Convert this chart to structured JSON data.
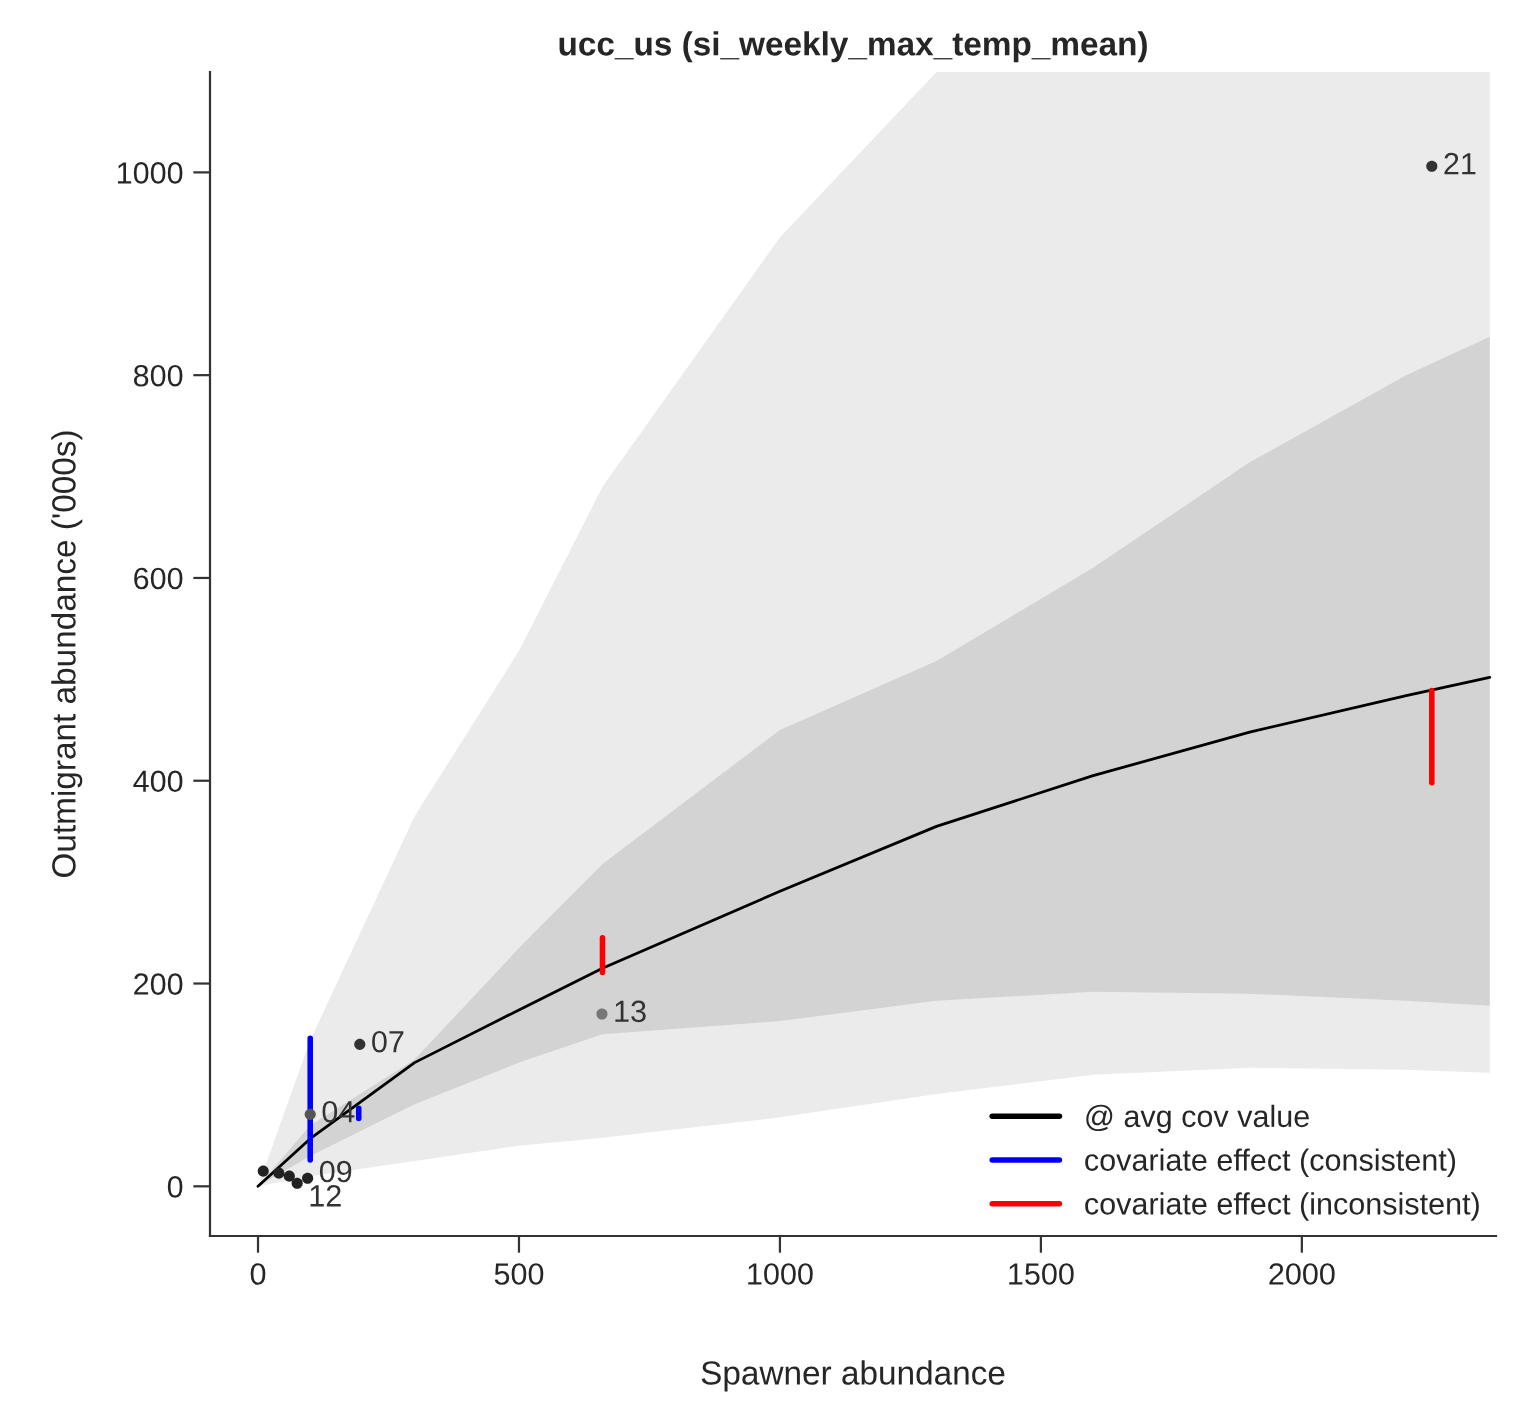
{
  "chart_data": {
    "type": "line",
    "title": "ucc_us (si_weekly_max_temp_mean)",
    "xlabel": "Spawner abundance",
    "ylabel": "Outmigrant abundance ('000s)",
    "xlim": [
      -92,
      2372
    ],
    "ylim": [
      -49,
      1099
    ],
    "xticks": [
      0,
      500,
      1000,
      1500,
      2000
    ],
    "yticks": [
      0,
      200,
      400,
      600,
      800,
      1000
    ],
    "grid": false,
    "legend": "bottom right",
    "series": [
      {
        "type": "area",
        "color": "#ebebeb",
        "x": [
          0,
          100,
          300,
          500,
          660,
          1000,
          1300,
          1600,
          1900,
          2200,
          2360
        ],
        "values": [
          null,
          null,
          null,
          null,
          null,
          null,
          null,
          null,
          null,
          null,
          null
        ],
        "lower": [
          0,
          10,
          25,
          40,
          48,
          68,
          91,
          110,
          117,
          115,
          112
        ],
        "upper": [
          0,
          144,
          365,
          528,
          690,
          936,
          1099,
          1099,
          1099,
          1099,
          1099
        ]
      },
      {
        "name": "@ avg cov value",
        "color": "#000000",
        "x": [
          0,
          100,
          300,
          500,
          660,
          1000,
          1300,
          1600,
          1900,
          2200,
          2360
        ],
        "values": [
          0,
          47,
          122,
          174,
          215,
          291,
          355,
          405,
          448,
          484,
          502
        ],
        "lower": [
          0,
          30,
          81,
          122,
          150,
          163,
          183,
          192,
          190,
          183,
          178
        ],
        "upper": [
          0,
          60,
          125,
          235,
          318,
          450,
          518,
          610,
          714,
          800,
          838
        ]
      },
      {
        "type": "line",
        "name": "covariate effect (consistent)",
        "color": "#0000ff",
        "x": [
          100,
          100,
          146,
          193,
          193
        ],
        "values": [
          26,
          146,
          null,
          67,
          77
        ]
      },
      {
        "type": "line",
        "name": "covariate effect (inconsistent)",
        "color": "#ff0000",
        "x": [
          660,
          660,
          1454,
          2249,
          2249
        ],
        "values": [
          211,
          245,
          null,
          398,
          489
        ]
      },
      {
        "type": "scatter",
        "x": [
          2249,
          659,
          195,
          100,
          10,
          40,
          60,
          75,
          95
        ],
        "values": [
          1006,
          170,
          140,
          71,
          15,
          13,
          10,
          3,
          8
        ],
        "colors": [
          "#333333",
          "#777777",
          "#333333",
          "#555555",
          "#222222",
          "#222222",
          "#222222",
          "#222222",
          "#222222"
        ]
      }
    ],
    "annotations": [
      {
        "text": "21",
        "x": 2249,
        "y": 1006
      },
      {
        "text": "13",
        "x": 659,
        "y": 170
      },
      {
        "text": "07",
        "x": 195,
        "y": 140
      },
      {
        "text": "04",
        "x": 100,
        "y": 71
      },
      {
        "text": "12",
        "x": 75,
        "y": -12
      },
      {
        "text": "09",
        "x": 95,
        "y": 12
      }
    ]
  }
}
